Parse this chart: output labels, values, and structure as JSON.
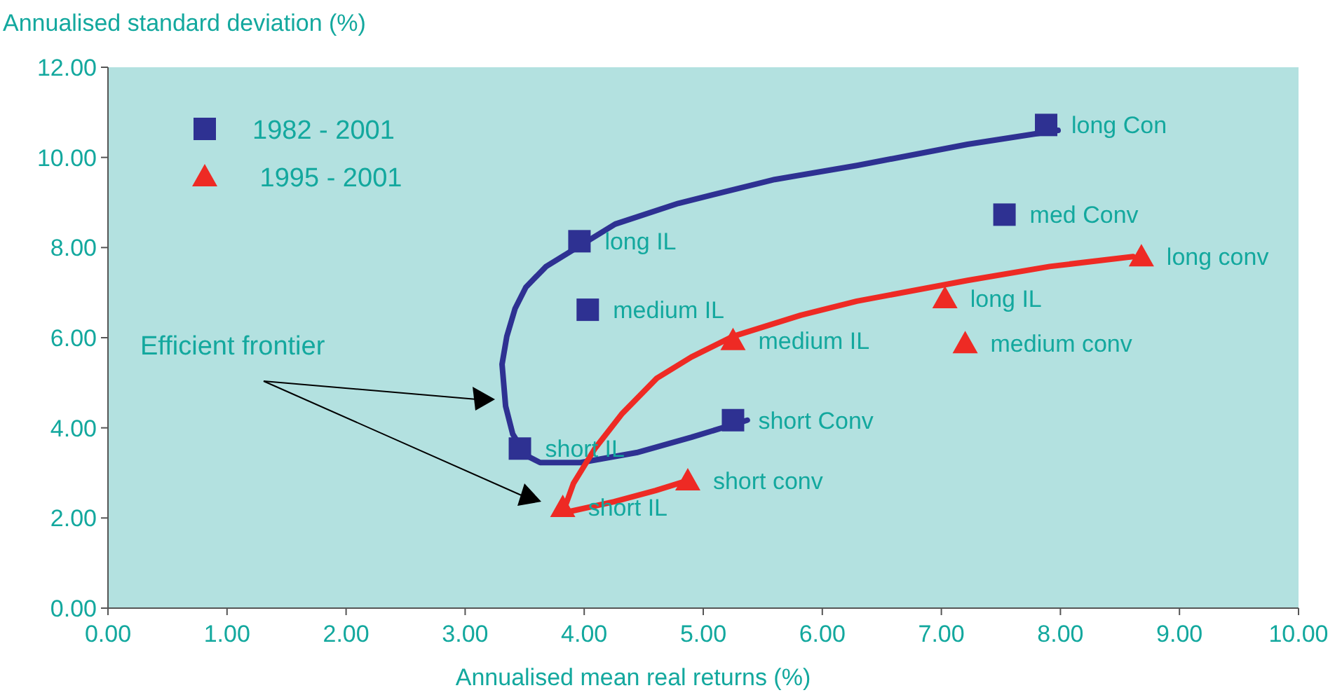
{
  "chart_data": {
    "type": "scatter",
    "xlabel": "Annualised mean real returns (%)",
    "ylabel": "Annualised standard deviation (%)",
    "xlim": [
      0,
      10
    ],
    "ylim": [
      0,
      12
    ],
    "xticks": [
      {
        "value": 0,
        "label": "0.00"
      },
      {
        "value": 1,
        "label": "1.00"
      },
      {
        "value": 2,
        "label": "2.00"
      },
      {
        "value": 3,
        "label": "3.00"
      },
      {
        "value": 4,
        "label": "4.00"
      },
      {
        "value": 5,
        "label": "5.00"
      },
      {
        "value": 6,
        "label": "6.00"
      },
      {
        "value": 7,
        "label": "7.00"
      },
      {
        "value": 8,
        "label": "8.00"
      },
      {
        "value": 9,
        "label": "9.00"
      },
      {
        "value": 10,
        "label": "10.00"
      }
    ],
    "yticks": [
      {
        "value": 0,
        "label": "0.00"
      },
      {
        "value": 2,
        "label": "2.00"
      },
      {
        "value": 4,
        "label": "4.00"
      },
      {
        "value": 6,
        "label": "6.00"
      },
      {
        "value": 8,
        "label": "8.00"
      },
      {
        "value": 10,
        "label": "10.00"
      },
      {
        "value": 12,
        "label": "12.00"
      }
    ],
    "grid": false,
    "legend": "top left",
    "series": [
      {
        "type": "line",
        "color": "#2e3192",
        "x": [
          5.37,
          4.9,
          4.44,
          3.97,
          3.63,
          3.51,
          3.4,
          3.34,
          3.31,
          3.35,
          3.42,
          3.51,
          3.68,
          3.97,
          4.26,
          4.79,
          5.6,
          6.29,
          7.22,
          7.98
        ],
        "values": [
          4.17,
          3.79,
          3.45,
          3.23,
          3.23,
          3.39,
          3.86,
          4.48,
          5.41,
          6.03,
          6.65,
          7.12,
          7.58,
          8.05,
          8.52,
          8.98,
          9.51,
          9.82,
          10.29,
          10.6
        ]
      },
      {
        "type": "line",
        "color": "#ee2a24",
        "x": [
          4.87,
          4.6,
          4.25,
          3.82,
          3.91,
          4.09,
          4.32,
          4.61,
          4.9,
          5.25,
          5.82,
          6.29,
          7.22,
          7.91,
          8.61
        ],
        "values": [
          2.83,
          2.61,
          2.36,
          2.11,
          2.77,
          3.54,
          4.32,
          5.1,
          5.57,
          6.03,
          6.5,
          6.81,
          7.27,
          7.58,
          7.8
        ]
      },
      {
        "name": "1982 - 2001",
        "marker": "square",
        "color": "#2e3192",
        "x": [
          7.88,
          7.53,
          3.96,
          4.03,
          3.46,
          5.25
        ],
        "values": [
          10.72,
          8.73,
          8.14,
          6.62,
          3.54,
          4.17
        ]
      },
      {
        "name": " 1995 - 2001",
        "marker": "triangle",
        "color": "#ee2a24",
        "x": [
          8.68,
          7.03,
          7.2,
          5.25,
          4.87,
          3.82
        ],
        "values": [
          7.8,
          6.87,
          5.87,
          5.94,
          2.83,
          2.24
        ]
      }
    ],
    "annotations": [
      {
        "text": "long Con",
        "x": 7.88,
        "y": 10.72
      },
      {
        "text": "med Conv",
        "x": 7.53,
        "y": 8.73
      },
      {
        "text": "long IL",
        "x": 3.96,
        "y": 8.14
      },
      {
        "text": "medium IL",
        "x": 4.03,
        "y": 6.62
      },
      {
        "text": "short IL",
        "x": 3.46,
        "y": 3.54
      },
      {
        "text": "short Conv",
        "x": 5.25,
        "y": 4.17
      },
      {
        "text": "long conv",
        "x": 8.68,
        "y": 7.8
      },
      {
        "text": "long IL",
        "x": 7.03,
        "y": 6.87
      },
      {
        "text": "medium conv",
        "x": 7.2,
        "y": 5.87
      },
      {
        "text": "medium IL",
        "x": 5.25,
        "y": 5.94
      },
      {
        "text": "short conv",
        "x": 4.87,
        "y": 2.83
      },
      {
        "text": "short IL",
        "x": 3.82,
        "y": 2.24
      },
      "Efficient frontier"
    ]
  }
}
